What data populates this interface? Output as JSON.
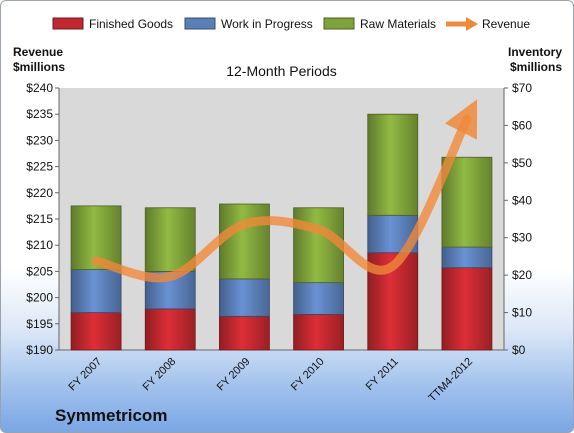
{
  "chart_data": {
    "type": "bar",
    "title": "12-Month Periods",
    "categories": [
      "FY 2007",
      "FY 2008",
      "FY 2009",
      "FY 2010",
      "FY 2011",
      "TTM4-2012"
    ],
    "series": [
      {
        "name": "Finished Goods",
        "color": "#c0282f",
        "values": [
          10,
          11,
          9,
          9.5,
          26,
          22
        ]
      },
      {
        "name": "Work in Progress",
        "color": "#5b7fb8",
        "values": [
          11.5,
          10,
          10,
          8.5,
          10,
          5.5
        ]
      },
      {
        "name": "Raw Materials",
        "color": "#7fa23a",
        "values": [
          17,
          17,
          20,
          20,
          27,
          24
        ]
      }
    ],
    "line": {
      "name": "Revenue",
      "color": "#f0883a",
      "axis": "left",
      "values": [
        207,
        204,
        214,
        213,
        206,
        234
      ]
    },
    "y_left": {
      "label_lines": [
        "Revenue",
        "$millions"
      ],
      "min": 190,
      "max": 240,
      "step": 5,
      "tick_prefix": "$"
    },
    "y_right": {
      "label_lines": [
        "Inventory",
        "$millions"
      ],
      "min": 0,
      "max": 70,
      "step": 10,
      "tick_prefix": "$"
    },
    "legend": {
      "placement": "top"
    },
    "grid": false
  },
  "footer": {
    "company": "Symmetricom"
  }
}
